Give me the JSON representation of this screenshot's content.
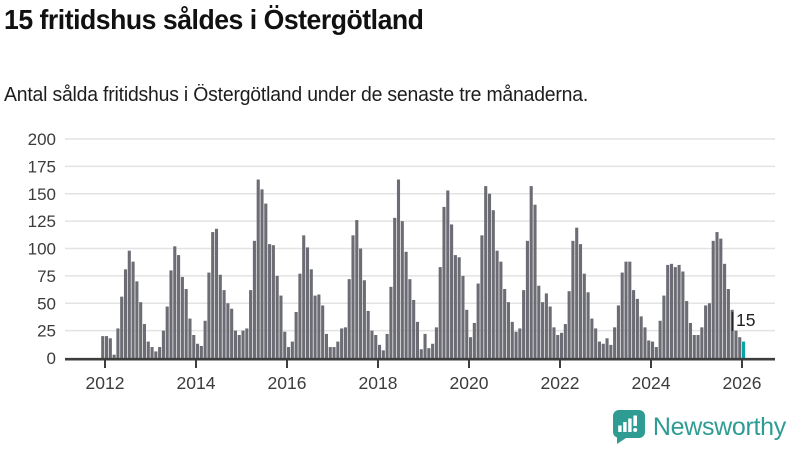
{
  "header": {
    "title": "15 fritidshus såldes i Östergötland",
    "subtitle": "Antal sålda fritidshus i Östergötland under de senaste tre månaderna."
  },
  "chart_data": {
    "type": "bar",
    "title": "15 fritidshus såldes i Östergötland",
    "subtitle": "Antal sålda fritidshus i Östergötland under de senaste tre månaderna.",
    "frequency": "monthly",
    "start_month": "2011-12",
    "end_month": "2026-01",
    "values": [
      20,
      20,
      18,
      3,
      27,
      56,
      81,
      98,
      88,
      70,
      51,
      31,
      15,
      10,
      6,
      10,
      25,
      47,
      80,
      102,
      94,
      74,
      63,
      36,
      21,
      13,
      11,
      34,
      78,
      115,
      118,
      76,
      62,
      50,
      45,
      25,
      21,
      25,
      27,
      62,
      107,
      163,
      154,
      141,
      104,
      103,
      75,
      57,
      24,
      10,
      15,
      42,
      77,
      112,
      101,
      81,
      57,
      58,
      48,
      22,
      10,
      10,
      15,
      27,
      28,
      72,
      112,
      126,
      100,
      71,
      43,
      25,
      21,
      12,
      7,
      22,
      65,
      128,
      163,
      125,
      97,
      72,
      53,
      33,
      8,
      22,
      9,
      13,
      28,
      83,
      138,
      153,
      122,
      94,
      92,
      75,
      44,
      19,
      32,
      68,
      112,
      157,
      150,
      135,
      98,
      88,
      63,
      51,
      33,
      24,
      27,
      62,
      107,
      157,
      140,
      66,
      51,
      59,
      47,
      28,
      21,
      23,
      31,
      61,
      107,
      119,
      104,
      77,
      60,
      36,
      27,
      15,
      13,
      18,
      12,
      28,
      48,
      78,
      88,
      88,
      62,
      54,
      38,
      28,
      16,
      15,
      10,
      34,
      57,
      85,
      86,
      83,
      85,
      79,
      52,
      32,
      21,
      21,
      28,
      48,
      50,
      107,
      115,
      109,
      86,
      63,
      44,
      25,
      19,
      15
    ],
    "ylim": [
      0,
      200
    ],
    "y_ticks": [
      0,
      25,
      50,
      75,
      100,
      125,
      150,
      175,
      200
    ],
    "x_tick_labels": [
      "2012",
      "2014",
      "2016",
      "2018",
      "2020",
      "2022",
      "2024",
      "2026"
    ],
    "grid": true,
    "legend": "none",
    "highlight_last": true,
    "last_value": 15,
    "last_value_label": "15",
    "colors": {
      "bar": "#6C6C74",
      "highlight": "#0BA3A4",
      "gridline": "#E3E3E3",
      "axis": "#3D3D3D",
      "tick_text": "#3C3C3C",
      "annotation_text": "#222222"
    }
  },
  "footer": {
    "brand": "Newsworthy",
    "brand_color": "#2F9C94",
    "logo_icon": "bar-chart-speech-bubble"
  }
}
